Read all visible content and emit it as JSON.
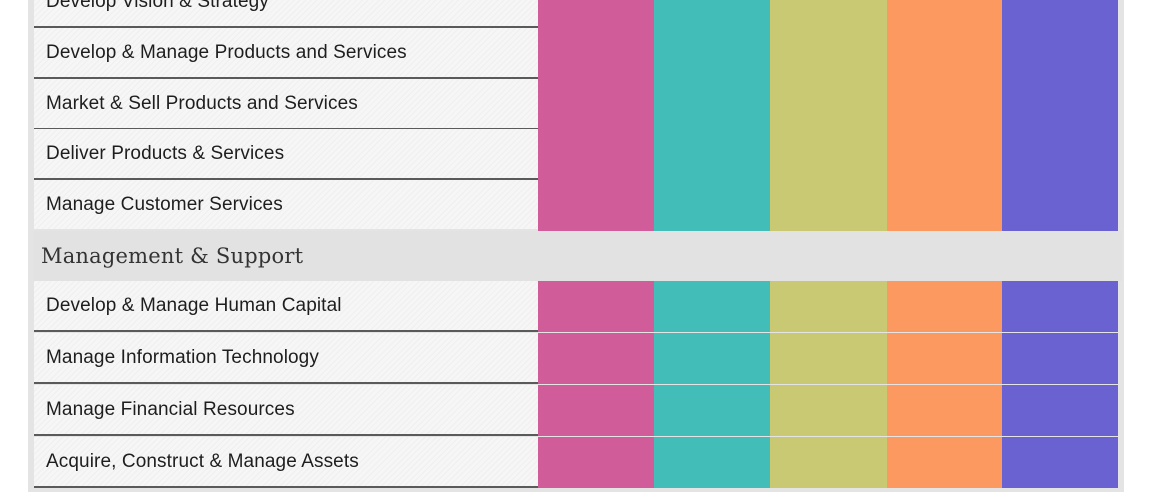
{
  "colors": {
    "col1": "#d05d99",
    "col2": "#43bdb8",
    "col3": "#c9c973",
    "col4": "#fb9961",
    "col5": "#6a62d0"
  },
  "core_rows": [
    {
      "label": "Develop  Vision  & Strategy"
    },
    {
      "label": "Develop & Manage Products and Services"
    },
    {
      "label": "Market & Sell Products and Services"
    },
    {
      "label": "Deliver Products & Services"
    },
    {
      "label": "Manage Customer  Services"
    }
  ],
  "section": {
    "title": "Management & Support"
  },
  "support_rows": [
    {
      "label": "Develop & Manage Human  Capital"
    },
    {
      "label": "Manage Information  Technology"
    },
    {
      "label": "Manage Financial Resources"
    },
    {
      "label": "Acquire, Construct & Manage Assets"
    }
  ]
}
